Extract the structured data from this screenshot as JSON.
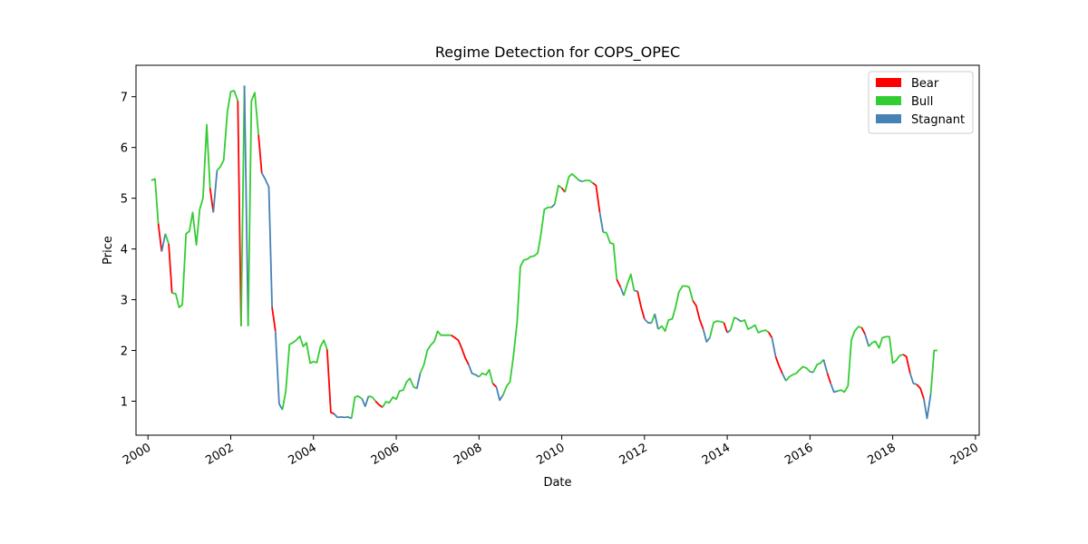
{
  "chart_data": {
    "type": "line",
    "title": "Regime Detection for COPS_OPEC",
    "xlabel": "Date",
    "ylabel": "Price",
    "xlim": [
      1999.71,
      2020.09
    ],
    "ylim": [
      0.33,
      7.62
    ],
    "xticks": [
      2000,
      2002,
      2004,
      2006,
      2008,
      2010,
      2012,
      2014,
      2016,
      2018,
      2020
    ],
    "xtick_labels": [
      "2000",
      "2002",
      "2004",
      "2006",
      "2008",
      "2010",
      "2012",
      "2014",
      "2016",
      "2018",
      "2020"
    ],
    "yticks": [
      1,
      2,
      3,
      4,
      5,
      6,
      7
    ],
    "ytick_labels": [
      "1",
      "2",
      "3",
      "4",
      "5",
      "6",
      "7"
    ],
    "grid": false,
    "legend_position": "top-right",
    "legend": [
      {
        "label": "Bear",
        "color": "#ff0000"
      },
      {
        "label": "Bull",
        "color": "#32cd32"
      },
      {
        "label": "Stagnant",
        "color": "#4682b4"
      }
    ],
    "regime_colors": {
      "Bear": "#ff0000",
      "Bull": "#32cd32",
      "Stagnant": "#4682b4"
    },
    "series": [
      {
        "regime": "Bull",
        "x": [
          2000.08,
          2000.17,
          2000.25
        ],
        "y": [
          5.35,
          5.38,
          4.5
        ]
      },
      {
        "regime": "Bear",
        "x": [
          2000.25,
          2000.33
        ],
        "y": [
          4.5,
          3.95
        ]
      },
      {
        "regime": "Stagnant",
        "x": [
          2000.33,
          2000.42
        ],
        "y": [
          3.95,
          4.3
        ]
      },
      {
        "regime": "Bull",
        "x": [
          2000.42,
          2000.5
        ],
        "y": [
          4.3,
          4.1
        ]
      },
      {
        "regime": "Bear",
        "x": [
          2000.5,
          2000.58
        ],
        "y": [
          4.1,
          3.13
        ]
      },
      {
        "regime": "Bull",
        "x": [
          2000.58,
          2000.67,
          2000.75,
          2000.83,
          2000.92,
          2001.0,
          2001.08,
          2001.17,
          2001.25,
          2001.33,
          2001.42,
          2001.5
        ],
        "y": [
          3.13,
          3.12,
          2.85,
          2.9,
          4.3,
          4.35,
          4.72,
          4.08,
          4.78,
          5.0,
          6.45,
          5.2
        ]
      },
      {
        "regime": "Bear",
        "x": [
          2001.5,
          2001.58
        ],
        "y": [
          5.2,
          4.72
        ]
      },
      {
        "regime": "Stagnant",
        "x": [
          2001.58,
          2001.67
        ],
        "y": [
          4.72,
          5.55
        ]
      },
      {
        "regime": "Bull",
        "x": [
          2001.67,
          2001.75,
          2001.83,
          2001.92,
          2002.0,
          2002.08,
          2002.17
        ],
        "y": [
          5.55,
          5.62,
          5.75,
          6.7,
          7.1,
          7.12,
          6.92
        ]
      },
      {
        "regime": "Bear",
        "x": [
          2002.17,
          2002.25
        ],
        "y": [
          6.92,
          2.48
        ]
      },
      {
        "regime": "Bull",
        "x": [
          2002.25,
          2002.33
        ],
        "y": [
          2.48,
          7.22
        ]
      },
      {
        "regime": "Stagnant",
        "x": [
          2002.33,
          2002.42
        ],
        "y": [
          7.22,
          2.48
        ]
      },
      {
        "regime": "Bull",
        "x": [
          2002.42,
          2002.5,
          2002.58,
          2002.67
        ],
        "y": [
          2.48,
          6.92,
          7.08,
          6.25
        ]
      },
      {
        "regime": "Bear",
        "x": [
          2002.67,
          2002.75
        ],
        "y": [
          6.25,
          5.5
        ]
      },
      {
        "regime": "Stagnant",
        "x": [
          2002.75,
          2002.83,
          2002.92,
          2003.0
        ],
        "y": [
          5.5,
          5.38,
          5.22,
          2.85
        ]
      },
      {
        "regime": "Bear",
        "x": [
          2003.0,
          2003.08
        ],
        "y": [
          2.85,
          2.38
        ]
      },
      {
        "regime": "Stagnant",
        "x": [
          2003.08,
          2003.17,
          2003.25
        ],
        "y": [
          2.38,
          0.95,
          0.83
        ]
      },
      {
        "regime": "Bull",
        "x": [
          2003.25,
          2003.33,
          2003.42,
          2003.5,
          2003.58,
          2003.67,
          2003.75,
          2003.83,
          2003.92,
          2004.0,
          2004.08,
          2004.17,
          2004.25,
          2004.33
        ],
        "y": [
          0.83,
          1.2,
          2.12,
          2.15,
          2.2,
          2.28,
          2.08,
          2.15,
          1.75,
          1.78,
          1.76,
          2.08,
          2.2,
          2.02
        ]
      },
      {
        "regime": "Bear",
        "x": [
          2004.33,
          2004.42,
          2004.5
        ],
        "y": [
          2.02,
          0.78,
          0.75
        ]
      },
      {
        "regime": "Stagnant",
        "x": [
          2004.5,
          2004.58,
          2004.67,
          2004.75,
          2004.83,
          2004.92
        ],
        "y": [
          0.75,
          0.68,
          0.69,
          0.68,
          0.69,
          0.66
        ]
      },
      {
        "regime": "Bull",
        "x": [
          2004.92,
          2005.0,
          2005.08,
          2005.17
        ],
        "y": [
          0.66,
          1.08,
          1.1,
          1.05
        ]
      },
      {
        "regime": "Stagnant",
        "x": [
          2005.17,
          2005.25,
          2005.33
        ],
        "y": [
          1.05,
          0.9,
          1.1
        ]
      },
      {
        "regime": "Bull",
        "x": [
          2005.33,
          2005.42,
          2005.5
        ],
        "y": [
          1.1,
          1.08,
          1.0
        ]
      },
      {
        "regime": "Bear",
        "x": [
          2005.5,
          2005.58,
          2005.67
        ],
        "y": [
          1.0,
          0.93,
          0.88
        ]
      },
      {
        "regime": "Bull",
        "x": [
          2005.67,
          2005.75,
          2005.83,
          2005.92,
          2006.0,
          2006.08,
          2006.17,
          2006.25,
          2006.33,
          2006.42,
          2006.5
        ],
        "y": [
          0.88,
          0.99,
          0.97,
          1.08,
          1.04,
          1.2,
          1.22,
          1.38,
          1.45,
          1.28,
          1.25
        ]
      },
      {
        "regime": "Stagnant",
        "x": [
          2006.5,
          2006.58
        ],
        "y": [
          1.25,
          1.55
        ]
      },
      {
        "regime": "Bull",
        "x": [
          2006.58,
          2006.67,
          2006.75,
          2006.83,
          2006.92,
          2007.0,
          2007.08,
          2007.17,
          2007.25,
          2007.33
        ],
        "y": [
          1.55,
          1.72,
          2.0,
          2.1,
          2.18,
          2.38,
          2.3,
          2.3,
          2.3,
          2.3
        ]
      },
      {
        "regime": "Bear",
        "x": [
          2007.33,
          2007.42,
          2007.5,
          2007.58,
          2007.67,
          2007.75
        ],
        "y": [
          2.3,
          2.25,
          2.2,
          2.05,
          1.85,
          1.72
        ]
      },
      {
        "regime": "Stagnant",
        "x": [
          2007.75,
          2007.83,
          2007.92,
          2008.0
        ],
        "y": [
          1.72,
          1.55,
          1.52,
          1.48
        ]
      },
      {
        "regime": "Bull",
        "x": [
          2008.0,
          2008.08,
          2008.17,
          2008.25,
          2008.33
        ],
        "y": [
          1.48,
          1.55,
          1.52,
          1.62,
          1.35
        ]
      },
      {
        "regime": "Bear",
        "x": [
          2008.33,
          2008.42
        ],
        "y": [
          1.35,
          1.28
        ]
      },
      {
        "regime": "Stagnant",
        "x": [
          2008.42,
          2008.5,
          2008.58
        ],
        "y": [
          1.28,
          1.02,
          1.12
        ]
      },
      {
        "regime": "Bull",
        "x": [
          2008.58,
          2008.67,
          2008.75,
          2008.83,
          2008.92,
          2009.0,
          2009.08,
          2009.17,
          2009.25,
          2009.33,
          2009.42,
          2009.5,
          2009.58,
          2009.67,
          2009.75
        ],
        "y": [
          1.12,
          1.3,
          1.38,
          1.88,
          2.55,
          3.65,
          3.78,
          3.8,
          3.85,
          3.86,
          3.92,
          4.3,
          4.78,
          4.82,
          4.82
        ]
      },
      {
        "regime": "Stagnant",
        "x": [
          2009.75,
          2009.83
        ],
        "y": [
          4.82,
          4.88
        ]
      },
      {
        "regime": "Bull",
        "x": [
          2009.83,
          2009.92,
          2010.0
        ],
        "y": [
          4.88,
          5.25,
          5.2
        ]
      },
      {
        "regime": "Bear",
        "x": [
          2010.0,
          2010.08
        ],
        "y": [
          5.2,
          5.12
        ]
      },
      {
        "regime": "Bull",
        "x": [
          2010.08,
          2010.17,
          2010.25,
          2010.33,
          2010.42
        ],
        "y": [
          5.12,
          5.42,
          5.48,
          5.42,
          5.35
        ]
      },
      {
        "regime": "Stagnant",
        "x": [
          2010.42,
          2010.5
        ],
        "y": [
          5.35,
          5.33
        ]
      },
      {
        "regime": "Bull",
        "x": [
          2010.5,
          2010.58,
          2010.67,
          2010.75
        ],
        "y": [
          5.33,
          5.35,
          5.35,
          5.3
        ]
      },
      {
        "regime": "Bear",
        "x": [
          2010.75,
          2010.83,
          2010.92
        ],
        "y": [
          5.3,
          5.25,
          4.72
        ]
      },
      {
        "regime": "Stagnant",
        "x": [
          2010.92,
          2011.0
        ],
        "y": [
          4.72,
          4.33
        ]
      },
      {
        "regime": "Bull",
        "x": [
          2011.0,
          2011.08,
          2011.17,
          2011.25,
          2011.33
        ],
        "y": [
          4.33,
          4.32,
          4.12,
          4.1,
          3.4
        ]
      },
      {
        "regime": "Bear",
        "x": [
          2011.33,
          2011.42
        ],
        "y": [
          3.4,
          3.25
        ]
      },
      {
        "regime": "Stagnant",
        "x": [
          2011.42,
          2011.5
        ],
        "y": [
          3.25,
          3.08
        ]
      },
      {
        "regime": "Bull",
        "x": [
          2011.5,
          2011.58,
          2011.67,
          2011.75
        ],
        "y": [
          3.08,
          3.3,
          3.5,
          3.18
        ]
      },
      {
        "regime": "Stagnant",
        "x": [
          2011.75,
          2011.83
        ],
        "y": [
          3.18,
          3.17
        ]
      },
      {
        "regime": "Bear",
        "x": [
          2011.83,
          2011.92,
          2012.0
        ],
        "y": [
          3.17,
          2.85,
          2.62
        ]
      },
      {
        "regime": "Stagnant",
        "x": [
          2012.0,
          2012.08,
          2012.17
        ],
        "y": [
          2.62,
          2.55,
          2.54
        ]
      },
      {
        "regime": "Bull",
        "x": [
          2012.17,
          2012.25
        ],
        "y": [
          2.54,
          2.72
        ]
      },
      {
        "regime": "Stagnant",
        "x": [
          2012.25,
          2012.33
        ],
        "y": [
          2.72,
          2.42
        ]
      },
      {
        "regime": "Bull",
        "x": [
          2012.33,
          2012.42,
          2012.5,
          2012.58,
          2012.67,
          2012.75,
          2012.83,
          2012.92,
          2013.0,
          2013.08,
          2013.17
        ],
        "y": [
          2.42,
          2.48,
          2.38,
          2.6,
          2.62,
          2.85,
          3.15,
          3.27,
          3.27,
          3.25,
          2.98
        ]
      },
      {
        "regime": "Bear",
        "x": [
          2013.17,
          2013.25,
          2013.33,
          2013.42
        ],
        "y": [
          2.98,
          2.88,
          2.62,
          2.42
        ]
      },
      {
        "regime": "Stagnant",
        "x": [
          2013.42,
          2013.5,
          2013.58
        ],
        "y": [
          2.42,
          2.17,
          2.25
        ]
      },
      {
        "regime": "Bull",
        "x": [
          2013.58,
          2013.67,
          2013.75,
          2013.83,
          2013.92
        ],
        "y": [
          2.25,
          2.55,
          2.58,
          2.57,
          2.55
        ]
      },
      {
        "regime": "Bear",
        "x": [
          2013.92,
          2014.0
        ],
        "y": [
          2.55,
          2.35
        ]
      },
      {
        "regime": "Stagnant",
        "x": [
          2014.0,
          2014.08
        ],
        "y": [
          2.35,
          2.4
        ]
      },
      {
        "regime": "Bull",
        "x": [
          2014.08,
          2014.17,
          2014.25
        ],
        "y": [
          2.4,
          2.65,
          2.62
        ]
      },
      {
        "regime": "Stagnant",
        "x": [
          2014.25,
          2014.33
        ],
        "y": [
          2.62,
          2.57
        ]
      },
      {
        "regime": "Bull",
        "x": [
          2014.33,
          2014.42,
          2014.5,
          2014.58,
          2014.67,
          2014.75,
          2014.83,
          2014.92,
          2015.0
        ],
        "y": [
          2.57,
          2.6,
          2.42,
          2.45,
          2.5,
          2.35,
          2.38,
          2.4,
          2.36
        ]
      },
      {
        "regime": "Bear",
        "x": [
          2015.0,
          2015.08
        ],
        "y": [
          2.36,
          2.25
        ]
      },
      {
        "regime": "Stagnant",
        "x": [
          2015.08,
          2015.17
        ],
        "y": [
          2.25,
          1.88
        ]
      },
      {
        "regime": "Bear",
        "x": [
          2015.17,
          2015.25,
          2015.33
        ],
        "y": [
          1.88,
          1.7,
          1.55
        ]
      },
      {
        "regime": "Stagnant",
        "x": [
          2015.33,
          2015.42
        ],
        "y": [
          1.55,
          1.4
        ]
      },
      {
        "regime": "Bull",
        "x": [
          2015.42,
          2015.5,
          2015.58,
          2015.67,
          2015.75,
          2015.83,
          2015.92,
          2016.0
        ],
        "y": [
          1.4,
          1.48,
          1.52,
          1.55,
          1.62,
          1.68,
          1.65,
          1.58
        ]
      },
      {
        "regime": "Stagnant",
        "x": [
          2016.0,
          2016.08
        ],
        "y": [
          1.58,
          1.57
        ]
      },
      {
        "regime": "Bull",
        "x": [
          2016.08,
          2016.17,
          2016.25,
          2016.33
        ],
        "y": [
          1.57,
          1.72,
          1.75,
          1.82
        ]
      },
      {
        "regime": "Stagnant",
        "x": [
          2016.33,
          2016.42
        ],
        "y": [
          1.82,
          1.55
        ]
      },
      {
        "regime": "Bear",
        "x": [
          2016.42,
          2016.5
        ],
        "y": [
          1.55,
          1.35
        ]
      },
      {
        "regime": "Stagnant",
        "x": [
          2016.5,
          2016.58,
          2016.67
        ],
        "y": [
          1.35,
          1.18,
          1.2
        ]
      },
      {
        "regime": "Bull",
        "x": [
          2016.67,
          2016.75,
          2016.83,
          2016.92,
          2017.0,
          2017.08,
          2017.17,
          2017.25
        ],
        "y": [
          1.2,
          1.22,
          1.18,
          1.3,
          2.2,
          2.38,
          2.47,
          2.45
        ]
      },
      {
        "regime": "Bear",
        "x": [
          2017.25,
          2017.33
        ],
        "y": [
          2.45,
          2.32
        ]
      },
      {
        "regime": "Stagnant",
        "x": [
          2017.33,
          2017.42
        ],
        "y": [
          2.32,
          2.08
        ]
      },
      {
        "regime": "Bull",
        "x": [
          2017.42,
          2017.5,
          2017.58,
          2017.67,
          2017.75,
          2017.83,
          2017.92,
          2018.0,
          2018.08,
          2018.17,
          2018.25
        ],
        "y": [
          2.08,
          2.15,
          2.18,
          2.05,
          2.25,
          2.27,
          2.27,
          1.75,
          1.8,
          1.9,
          1.92
        ]
      },
      {
        "regime": "Bear",
        "x": [
          2018.25,
          2018.33,
          2018.42
        ],
        "y": [
          1.92,
          1.88,
          1.55
        ]
      },
      {
        "regime": "Stagnant",
        "x": [
          2018.42,
          2018.5,
          2018.58
        ],
        "y": [
          1.55,
          1.35,
          1.33
        ]
      },
      {
        "regime": "Bear",
        "x": [
          2018.58,
          2018.67,
          2018.75
        ],
        "y": [
          1.33,
          1.25,
          1.05
        ]
      },
      {
        "regime": "Stagnant",
        "x": [
          2018.75,
          2018.83,
          2018.92
        ],
        "y": [
          1.05,
          0.66,
          1.15
        ]
      },
      {
        "regime": "Bull",
        "x": [
          2018.92,
          2019.0,
          2019.08
        ],
        "y": [
          1.15,
          2.0,
          2.0
        ]
      }
    ]
  }
}
